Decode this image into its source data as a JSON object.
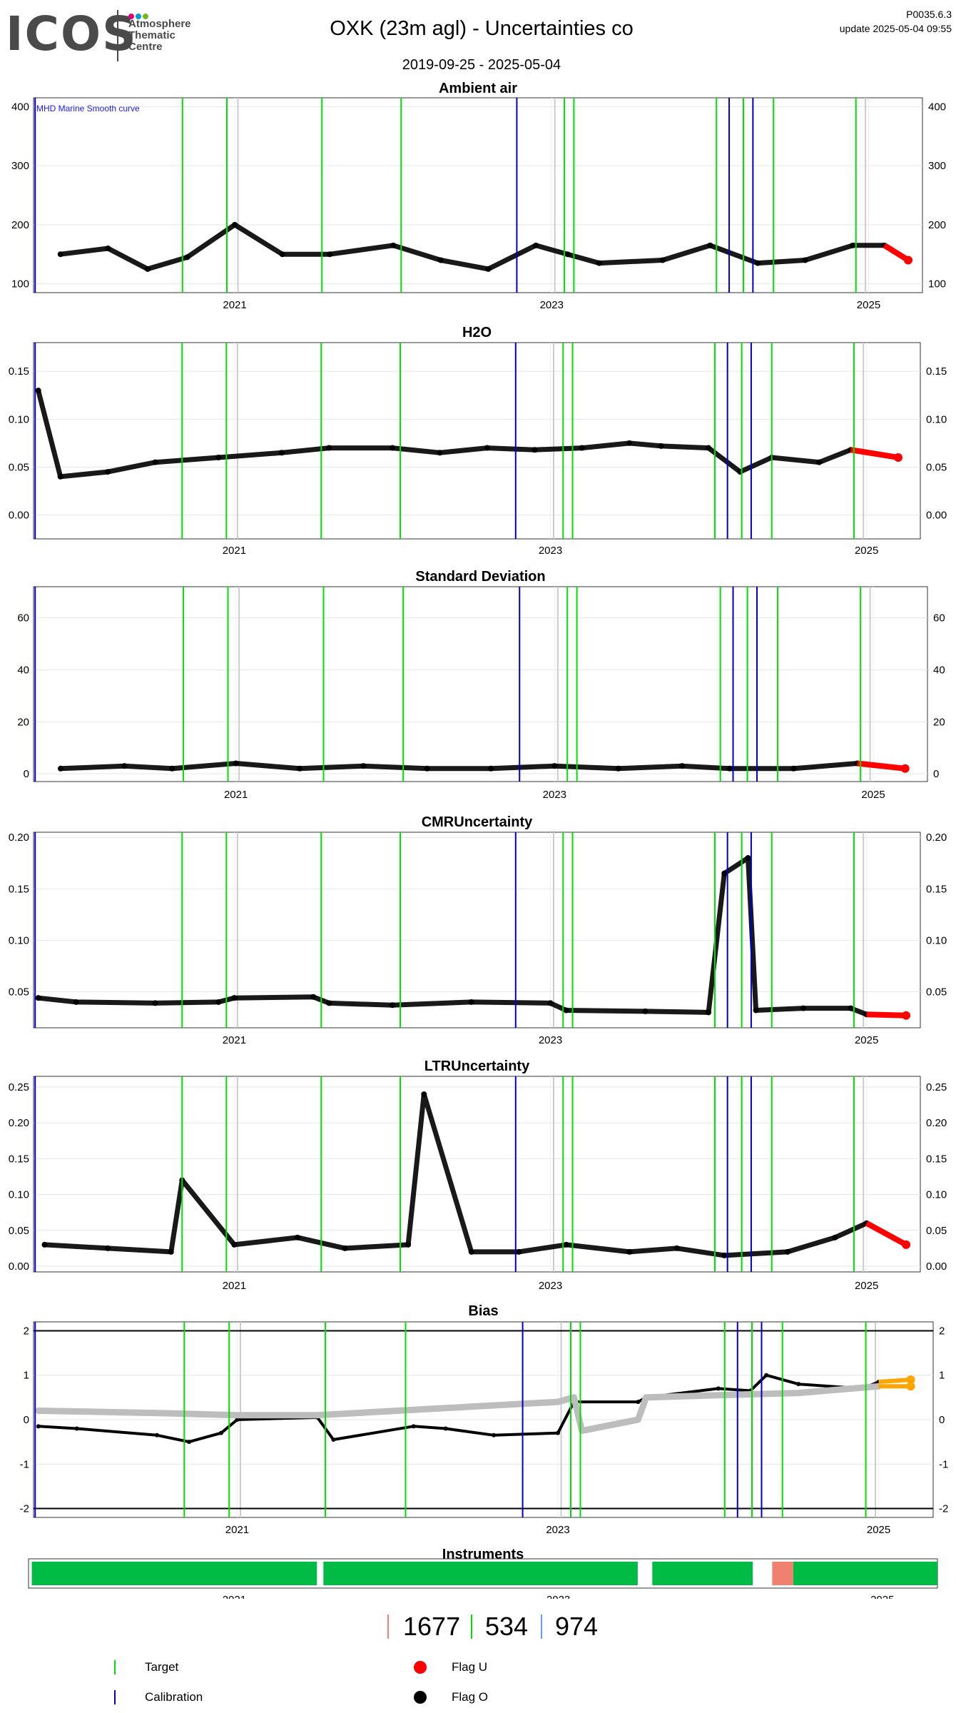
{
  "header": {
    "logo_word": "ICOS",
    "logo_lines": [
      "Atmosphere",
      "Thematic",
      "Centre"
    ],
    "title": "OXK  (23m agl) - Uncertainties co",
    "date_range": "2019-09-25 - 2025-05-04",
    "version": "P0035.6.3",
    "update": "update  2025-05-04 09:55",
    "logo_dot_colors": [
      "#e2007a",
      "#00a0d2",
      "#7ab51d"
    ]
  },
  "colors": {
    "target": "#00e000",
    "calibration": "#0000cc",
    "flag_u": "#ff0000",
    "flag_o": "#000000",
    "gray_series": "#bdbdbd",
    "bias_orange": "#ffa500",
    "instrument_green": "#00bb44",
    "instrument_red": "#f08070"
  },
  "time_axis": {
    "start": 2019.73,
    "end": 2025.34,
    "ticks": [
      2021,
      2023,
      2025
    ],
    "tick_labels": [
      "2021",
      "2023",
      "2025"
    ]
  },
  "vlines": {
    "target": [
      2020.67,
      2020.95,
      2021.55,
      2022.05,
      2023.08,
      2023.14,
      2024.04,
      2024.21,
      2024.4,
      2024.92
    ],
    "calibration": [
      2019.74,
      2022.78,
      2024.12,
      2024.27
    ],
    "gray": [
      2021.02,
      2023.02,
      2024.21,
      2024.98
    ]
  },
  "chart_data": [
    {
      "type": "scatter",
      "title": "Ambient air",
      "annotation": "MHD Marine Smooth curve",
      "ylim": [
        85,
        415
      ],
      "yticks": [
        100,
        200,
        300,
        400
      ],
      "series": [
        {
          "values": [
            [
              2019.9,
              150
            ],
            [
              2020.2,
              160
            ],
            [
              2020.45,
              125
            ],
            [
              2020.7,
              145
            ],
            [
              2021.0,
              200
            ],
            [
              2021.3,
              150
            ],
            [
              2021.6,
              150
            ],
            [
              2022.0,
              165
            ],
            [
              2022.3,
              140
            ],
            [
              2022.6,
              125
            ],
            [
              2022.9,
              165
            ],
            [
              2023.1,
              150
            ],
            [
              2023.3,
              135
            ],
            [
              2023.7,
              140
            ],
            [
              2024.0,
              165
            ],
            [
              2024.3,
              135
            ],
            [
              2024.6,
              140
            ],
            [
              2024.9,
              165
            ],
            [
              2025.1,
              165
            ],
            [
              2025.25,
              140
            ]
          ]
        }
      ]
    },
    {
      "type": "scatter",
      "title": "H2O",
      "ylim": [
        -0.025,
        0.18
      ],
      "yticks": [
        0.0,
        0.05,
        0.1,
        0.15
      ],
      "yticklabels": [
        "0.00",
        "0.05",
        "0.10",
        "0.15"
      ],
      "series": [
        {
          "values": [
            [
              2019.76,
              0.13
            ],
            [
              2019.9,
              0.04
            ],
            [
              2020.2,
              0.045
            ],
            [
              2020.5,
              0.055
            ],
            [
              2020.9,
              0.06
            ],
            [
              2021.3,
              0.065
            ],
            [
              2021.6,
              0.07
            ],
            [
              2022.0,
              0.07
            ],
            [
              2022.3,
              0.065
            ],
            [
              2022.6,
              0.07
            ],
            [
              2022.9,
              0.068
            ],
            [
              2023.2,
              0.07
            ],
            [
              2023.5,
              0.075
            ],
            [
              2023.7,
              0.072
            ],
            [
              2024.0,
              0.07
            ],
            [
              2024.2,
              0.045
            ],
            [
              2024.4,
              0.06
            ],
            [
              2024.7,
              0.055
            ],
            [
              2024.9,
              0.068
            ],
            [
              2025.2,
              0.06
            ]
          ]
        }
      ]
    },
    {
      "type": "scatter",
      "title": "Standard Deviation",
      "ylim": [
        -3,
        72
      ],
      "yticks": [
        0,
        20,
        40,
        60
      ],
      "series": [
        {
          "values": [
            [
              2019.9,
              2
            ],
            [
              2020.3,
              3
            ],
            [
              2020.6,
              2
            ],
            [
              2021.0,
              4
            ],
            [
              2021.4,
              2
            ],
            [
              2021.8,
              3
            ],
            [
              2022.2,
              2
            ],
            [
              2022.6,
              2
            ],
            [
              2023.0,
              3
            ],
            [
              2023.4,
              2
            ],
            [
              2023.8,
              3
            ],
            [
              2024.1,
              2
            ],
            [
              2024.5,
              2
            ],
            [
              2024.9,
              4
            ],
            [
              2025.2,
              2
            ]
          ]
        }
      ]
    },
    {
      "type": "scatter",
      "title": "CMRUncertainty",
      "ylim": [
        0.015,
        0.205
      ],
      "yticks": [
        0.05,
        0.1,
        0.15,
        0.2
      ],
      "yticklabels": [
        "0.05",
        "0.10",
        "0.15",
        "0.20"
      ],
      "series": [
        {
          "values": [
            [
              2019.76,
              0.044
            ],
            [
              2020.0,
              0.04
            ],
            [
              2020.5,
              0.039
            ],
            [
              2020.9,
              0.04
            ],
            [
              2021.0,
              0.044
            ],
            [
              2021.5,
              0.045
            ],
            [
              2021.6,
              0.039
            ],
            [
              2022.0,
              0.037
            ],
            [
              2022.5,
              0.04
            ],
            [
              2023.0,
              0.039
            ],
            [
              2023.1,
              0.032
            ],
            [
              2023.6,
              0.031
            ],
            [
              2024.0,
              0.03
            ],
            [
              2024.1,
              0.165
            ],
            [
              2024.25,
              0.18
            ],
            [
              2024.3,
              0.032
            ],
            [
              2024.6,
              0.034
            ],
            [
              2024.9,
              0.034
            ],
            [
              2025.0,
              0.028
            ],
            [
              2025.25,
              0.027
            ]
          ]
        }
      ]
    },
    {
      "type": "scatter",
      "title": "LTRUncertainty",
      "ylim": [
        -0.008,
        0.265
      ],
      "yticks": [
        0.0,
        0.05,
        0.1,
        0.15,
        0.2,
        0.25
      ],
      "yticklabels": [
        "0.00",
        "0.05",
        "0.10",
        "0.15",
        "0.20",
        "0.25"
      ],
      "series": [
        {
          "values": [
            [
              2019.8,
              0.03
            ],
            [
              2020.2,
              0.025
            ],
            [
              2020.6,
              0.02
            ],
            [
              2020.67,
              0.12
            ],
            [
              2021.0,
              0.03
            ],
            [
              2021.4,
              0.04
            ],
            [
              2021.7,
              0.025
            ],
            [
              2022.1,
              0.03
            ],
            [
              2022.2,
              0.24
            ],
            [
              2022.5,
              0.02
            ],
            [
              2022.8,
              0.02
            ],
            [
              2023.1,
              0.03
            ],
            [
              2023.5,
              0.02
            ],
            [
              2023.8,
              0.025
            ],
            [
              2024.1,
              0.015
            ],
            [
              2024.5,
              0.02
            ],
            [
              2024.8,
              0.04
            ],
            [
              2025.0,
              0.06
            ],
            [
              2025.25,
              0.03
            ]
          ]
        }
      ]
    },
    {
      "type": "line",
      "title": "Bias",
      "ylim": [
        -2.2,
        2.2
      ],
      "yticks": [
        -2,
        -1,
        0,
        1,
        2
      ],
      "yticklabels": [
        "-2",
        "-1",
        "0",
        "1",
        "2"
      ],
      "series": [
        {
          "values": [
            [
              2019.76,
              -0.15
            ],
            [
              2020.0,
              -0.2
            ],
            [
              2020.5,
              -0.35
            ],
            [
              2020.7,
              -0.5
            ],
            [
              2020.9,
              -0.3
            ],
            [
              2021.0,
              0.0
            ],
            [
              2021.5,
              0.05
            ],
            [
              2021.6,
              -0.45
            ],
            [
              2022.1,
              -0.15
            ],
            [
              2022.3,
              -0.2
            ],
            [
              2022.6,
              -0.35
            ],
            [
              2023.0,
              -0.3
            ],
            [
              2023.1,
              0.4
            ],
            [
              2023.5,
              0.4
            ],
            [
              2023.55,
              0.5
            ],
            [
              2024.0,
              0.7
            ],
            [
              2024.2,
              0.65
            ],
            [
              2024.3,
              1.0
            ],
            [
              2024.5,
              0.8
            ],
            [
              2024.9,
              0.7
            ],
            [
              2025.0,
              0.85
            ],
            [
              2025.2,
              0.9
            ]
          ]
        },
        {
          "values": [
            [
              2019.76,
              0.2
            ],
            [
              2020.5,
              0.15
            ],
            [
              2021.0,
              0.1
            ],
            [
              2021.5,
              0.1
            ],
            [
              2022.0,
              0.2
            ],
            [
              2022.5,
              0.3
            ],
            [
              2023.0,
              0.4
            ],
            [
              2023.1,
              0.5
            ],
            [
              2023.15,
              -0.25
            ],
            [
              2023.5,
              0.0
            ],
            [
              2023.55,
              0.5
            ],
            [
              2024.0,
              0.55
            ],
            [
              2024.5,
              0.6
            ],
            [
              2025.0,
              0.75
            ],
            [
              2025.2,
              0.75
            ]
          ]
        }
      ]
    },
    {
      "type": "bar",
      "title": "Instruments",
      "segments": [
        {
          "start": 2019.75,
          "end": 2021.51,
          "color": "#00bb44"
        },
        {
          "start": 2021.55,
          "end": 2023.49,
          "color": "#00bb44"
        },
        {
          "start": 2023.58,
          "end": 2024.2,
          "color": "#00bb44"
        },
        {
          "start": 2024.32,
          "end": 2024.45,
          "color": "#f08070"
        },
        {
          "start": 2024.45,
          "end": 2025.34,
          "color": "#00bb44"
        }
      ]
    }
  ],
  "counts": [
    {
      "value": "1677",
      "color": "#f08070"
    },
    {
      "value": "534",
      "color": "#00e000"
    },
    {
      "value": "974",
      "color": "#6699ff"
    }
  ],
  "legend": {
    "target": "Target",
    "calibration": "Calibration",
    "flag_u": "Flag U",
    "flag_o": "Flag O"
  }
}
